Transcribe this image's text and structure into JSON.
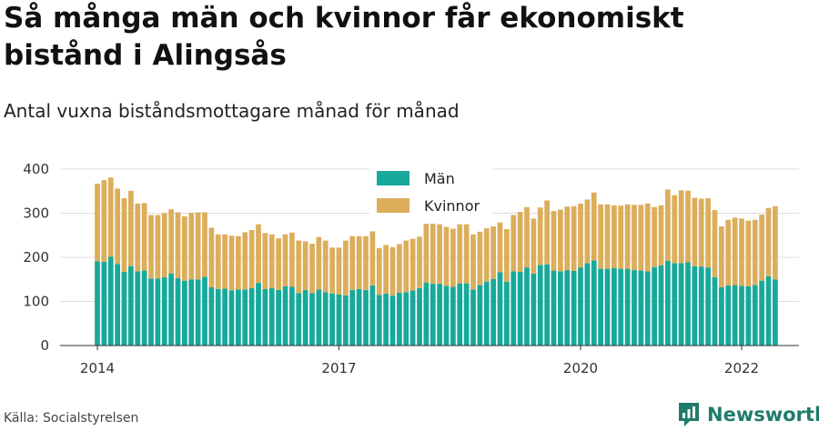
{
  "header": {
    "title": "Så många män och kvinnor får ekonomiskt bistånd i Alingsås",
    "subtitle": "Antal vuxna biståndsmottagare månad för månad"
  },
  "footer": {
    "source": "Källa: Socialstyrelsen",
    "brand": "Newsworthy"
  },
  "colors": {
    "man": "#17a99a",
    "kvinnor": "#dcae5c",
    "grid": "#dddddd",
    "brand": "#1f7b6b"
  },
  "chart_data": {
    "type": "bar",
    "stacked": true,
    "title": "Så många män och kvinnor får ekonomiskt bistånd i Alingsås",
    "subtitle": "Antal vuxna biståndsmottagare månad för månad",
    "ylim": [
      0,
      400
    ],
    "yticks": [
      0,
      100,
      200,
      300,
      400
    ],
    "xlim": [
      "2014-01",
      "2022-04"
    ],
    "xticks": [
      {
        "label": "2014",
        "month": "2014-01"
      },
      {
        "label": "2017",
        "month": "2017-01"
      },
      {
        "label": "2020",
        "month": "2020-01"
      },
      {
        "label": "2022",
        "month": "2022-01"
      }
    ],
    "grid": true,
    "legend_position": "top-center",
    "x_start": "2014-01",
    "series": [
      {
        "name": "Män",
        "values": [
          191,
          190,
          201,
          185,
          167,
          180,
          168,
          170,
          152,
          152,
          155,
          163,
          153,
          147,
          150,
          150,
          156,
          132,
          128,
          129,
          125,
          127,
          127,
          130,
          142,
          128,
          130,
          126,
          134,
          133,
          119,
          126,
          119,
          127,
          121,
          118,
          116,
          114,
          126,
          128,
          126,
          136,
          115,
          118,
          113,
          120,
          121,
          125,
          130,
          143,
          140,
          140,
          135,
          133,
          141,
          141,
          127,
          137,
          145,
          151,
          166,
          145,
          168,
          167,
          177,
          163,
          183,
          184,
          170,
          168,
          171,
          169,
          177,
          187,
          193,
          174,
          174,
          176,
          174,
          174,
          171,
          170,
          168,
          178,
          182,
          192,
          187,
          187,
          189,
          180,
          179,
          177,
          155,
          132,
          136,
          137,
          135,
          134,
          137,
          147,
          157,
          150
        ]
      },
      {
        "name": "Kvinnor",
        "values": [
          176,
          185,
          180,
          171,
          167,
          171,
          154,
          153,
          144,
          144,
          145,
          146,
          149,
          146,
          151,
          152,
          146,
          135,
          124,
          123,
          124,
          121,
          130,
          132,
          133,
          127,
          122,
          117,
          118,
          123,
          119,
          110,
          112,
          119,
          117,
          104,
          106,
          124,
          122,
          120,
          122,
          123,
          106,
          110,
          110,
          110,
          117,
          117,
          117,
          133,
          136,
          135,
          134,
          132,
          134,
          134,
          125,
          121,
          121,
          119,
          113,
          119,
          128,
          136,
          137,
          125,
          130,
          145,
          135,
          140,
          144,
          147,
          145,
          144,
          154,
          146,
          146,
          142,
          143,
          146,
          148,
          149,
          154,
          136,
          136,
          162,
          154,
          165,
          162,
          155,
          154,
          157,
          152,
          138,
          149,
          153,
          153,
          149,
          148,
          150,
          155,
          166
        ]
      }
    ]
  }
}
